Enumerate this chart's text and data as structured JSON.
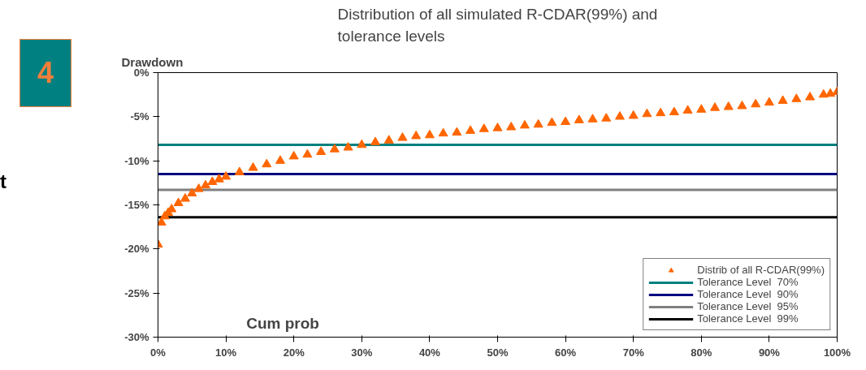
{
  "chart_data": {
    "type": "scatter",
    "title": "Distribution of all simulated R-CDAR(99%) and\ntolerance levels",
    "xlabel": "Cum prob",
    "ylabel": "Drawdown",
    "x": [
      0,
      0.5,
      1,
      1.5,
      2,
      3,
      4,
      5,
      6,
      7,
      8,
      9,
      10,
      12,
      14,
      16,
      18,
      20,
      22,
      24,
      26,
      28,
      30,
      32,
      34,
      36,
      38,
      40,
      42,
      44,
      46,
      48,
      50,
      52,
      54,
      56,
      58,
      60,
      62,
      64,
      66,
      68,
      70,
      72,
      74,
      76,
      78,
      80,
      82,
      84,
      86,
      88,
      90,
      92,
      94,
      96,
      98,
      99,
      100
    ],
    "series": [
      {
        "name": "Distrib of all R-CDAR(99%)",
        "color": "#ff6600",
        "values": [
          -19.5,
          -17,
          -16.3,
          -15.9,
          -15.5,
          -14.8,
          -14.3,
          -13.7,
          -13.2,
          -12.8,
          -12.4,
          -12.1,
          -11.8,
          -11.3,
          -10.8,
          -10.4,
          -10.0,
          -9.5,
          -9.3,
          -9.0,
          -8.7,
          -8.5,
          -8.2,
          -7.9,
          -7.7,
          -7.4,
          -7.2,
          -7.1,
          -6.9,
          -6.8,
          -6.6,
          -6.4,
          -6.3,
          -6.2,
          -6.0,
          -5.9,
          -5.7,
          -5.6,
          -5.4,
          -5.3,
          -5.2,
          -5.0,
          -4.9,
          -4.7,
          -4.6,
          -4.5,
          -4.3,
          -4.2,
          -4.0,
          -3.9,
          -3.8,
          -3.6,
          -3.4,
          -3.2,
          -3.0,
          -2.8,
          -2.5,
          -2.4,
          -2.2
        ]
      }
    ],
    "marker": "triangle",
    "ref_lines": [
      {
        "axis": "y",
        "value": -8.2,
        "label": "Tolerance Level  70%",
        "color": "#008080"
      },
      {
        "axis": "y",
        "value": -11.5,
        "label": "Tolerance Level  90%",
        "color": "#000080"
      },
      {
        "axis": "y",
        "value": -13.3,
        "label": "Tolerance Level  95%",
        "color": "#808080"
      },
      {
        "axis": "y",
        "value": -16.4,
        "label": "Tolerance Level  99%",
        "color": "#000000"
      }
    ],
    "xlim": [
      0,
      100
    ],
    "xticks": [
      {
        "value": 0,
        "label": "0%"
      },
      {
        "value": 10,
        "label": "10%"
      },
      {
        "value": 20,
        "label": "20%"
      },
      {
        "value": 30,
        "label": "30%"
      },
      {
        "value": 40,
        "label": "40%"
      },
      {
        "value": 50,
        "label": "50%"
      },
      {
        "value": 60,
        "label": "60%"
      },
      {
        "value": 70,
        "label": "70%"
      },
      {
        "value": 80,
        "label": "80%"
      },
      {
        "value": 90,
        "label": "90%"
      },
      {
        "value": 100,
        "label": "100%"
      }
    ],
    "ylim": [
      -30,
      0
    ],
    "yticks": [
      {
        "value": 0,
        "label": "0%"
      },
      {
        "value": -5,
        "label": "-5%"
      },
      {
        "value": -10,
        "label": "-10%"
      },
      {
        "value": -15,
        "label": "-15%"
      },
      {
        "value": -20,
        "label": "-20%"
      },
      {
        "value": -25,
        "label": "-25%"
      },
      {
        "value": -30,
        "label": "-30%"
      }
    ],
    "grid": false,
    "legend": "bottom right",
    "annotations": [
      "4",
      "t"
    ]
  }
}
